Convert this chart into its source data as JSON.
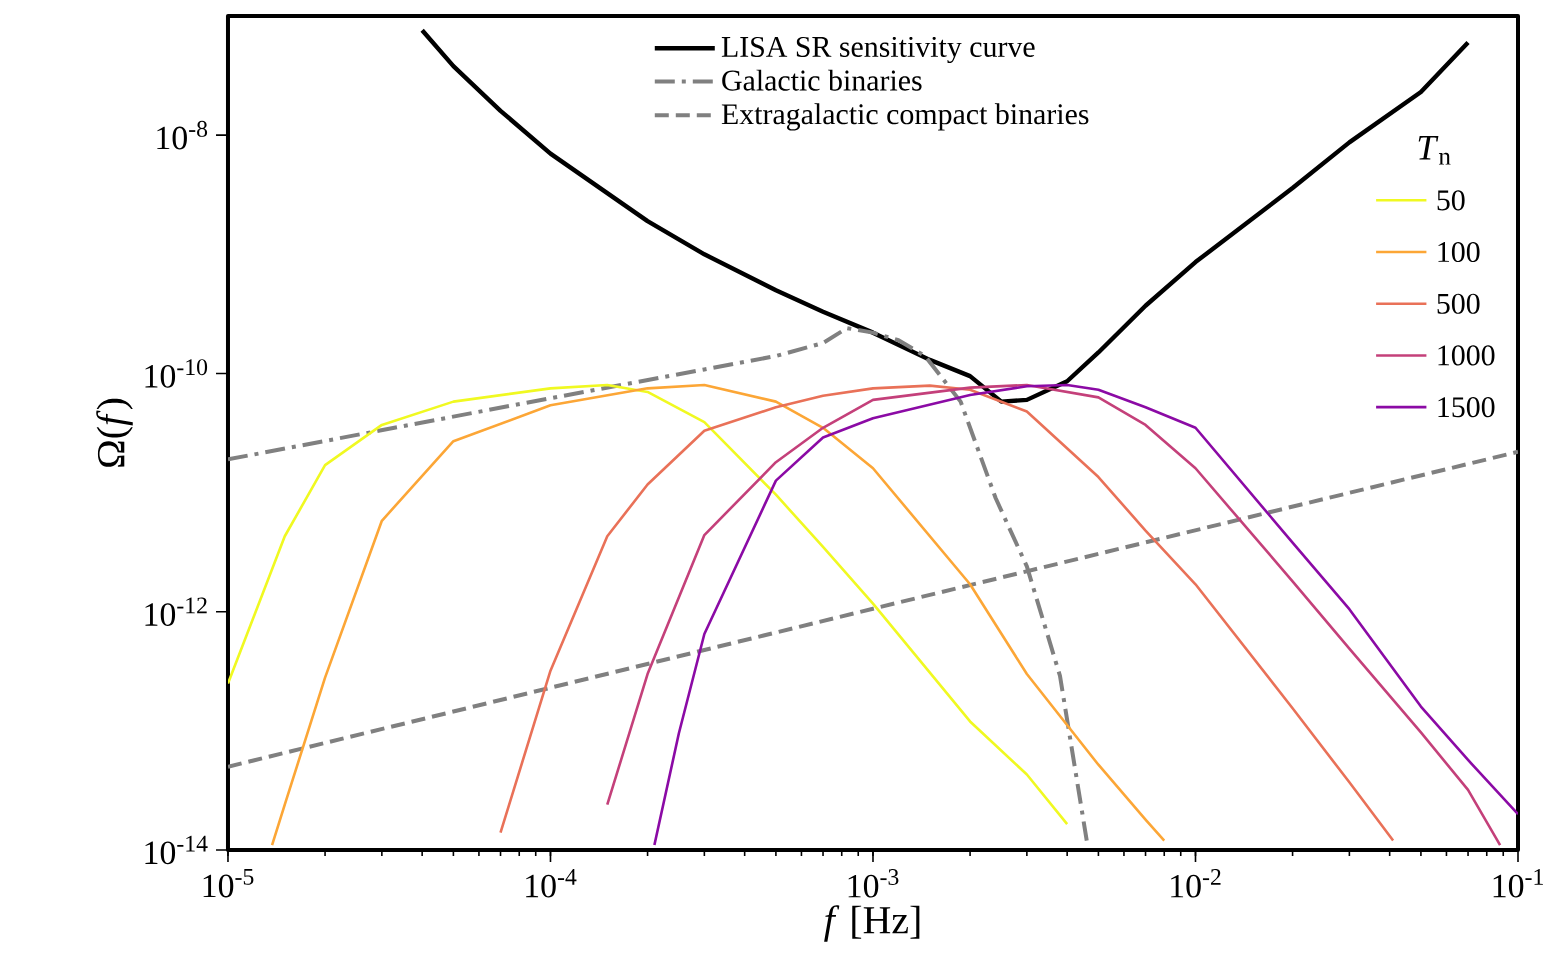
{
  "chart_data": {
    "type": "line",
    "xlabel": "*f* [Hz]",
    "ylabel": "Ω(*f*)",
    "log": "xy",
    "legend": "top",
    "legend_title": "*T*$_{n}$",
    "xlim": [
      1e-05,
      0.1
    ],
    "ylim": [
      1e-14,
      1e-07
    ],
    "xticks": [
      {
        "value": 1e-05,
        "label": "10$^{-5}$"
      },
      {
        "value": 0.0001,
        "label": "10$^{-4}$"
      },
      {
        "value": 0.001,
        "label": "10$^{-3}$"
      },
      {
        "value": 0.01,
        "label": "10$^{-2}$"
      },
      {
        "value": 0.1,
        "label": "10$^{-1}$"
      }
    ],
    "yticks": [
      {
        "value": 1e-14,
        "label": "10$^{-14}$"
      },
      {
        "value": 1e-12,
        "label": "10$^{-12}$"
      },
      {
        "value": 1e-10,
        "label": "10$^{-10}$"
      },
      {
        "value": 1e-08,
        "label": "10$^{-8}$"
      }
    ],
    "series": [
      {
        "name": "LISA SR sensitivity curve",
        "color": "#000000",
        "line_style": "solid",
        "x": [
          4e-05,
          5e-05,
          7e-05,
          0.0001,
          0.0002,
          0.0003,
          0.0005,
          0.0007,
          0.001,
          0.0015,
          0.002,
          0.0025,
          0.003,
          0.004,
          0.005,
          0.007,
          0.01,
          0.02,
          0.03,
          0.05,
          0.07
        ],
        "values": [
          7.6e-08,
          3.8e-08,
          1.6e-08,
          7e-09,
          1.9e-09,
          1e-09,
          5e-10,
          3.3e-10,
          2.2e-10,
          1.3e-10,
          9.5e-11,
          5.8e-11,
          6e-11,
          8.6e-11,
          1.5e-10,
          3.7e-10,
          8.6e-10,
          3.6e-09,
          8.7e-09,
          2.3e-08,
          6e-08
        ]
      },
      {
        "name": "Galactic binaries",
        "color": "#808080",
        "line_style": "dashdot",
        "x": [
          1e-05,
          0.0001,
          0.0003,
          0.0005,
          0.0007,
          0.00083,
          0.001,
          0.0012,
          0.00145,
          0.00187,
          0.0024,
          0.003,
          0.0038,
          0.0046
        ],
        "values": [
          1.9e-11,
          6.2e-11,
          1.08e-10,
          1.4e-10,
          1.8e-10,
          2.4e-10,
          2.2e-10,
          1.9e-10,
          1.4e-10,
          5.8e-11,
          9e-12,
          2.4e-12,
          2.9e-13,
          1.2e-14
        ]
      },
      {
        "name": "Extragalactic compact binaries",
        "color": "#808080",
        "line_style": "dashed",
        "x": [
          1e-05,
          0.001,
          0.1
        ],
        "values": [
          5e-14,
          1.06e-12,
          2.2e-11
        ]
      },
      {
        "name": "50",
        "color": "#f0f921",
        "x": [
          1e-05,
          1.5e-05,
          2e-05,
          3e-05,
          5e-05,
          0.0001,
          0.00015,
          0.0002,
          0.0003,
          0.0005,
          0.0007,
          0.001,
          0.002,
          0.003,
          0.004
        ],
        "values": [
          2.5e-13,
          4.3e-12,
          1.7e-11,
          3.7e-11,
          5.8e-11,
          7.5e-11,
          8e-11,
          7e-11,
          3.9e-11,
          9.6e-12,
          3.5e-12,
          1.17e-12,
          1.2e-13,
          4.3e-14,
          1.65e-14
        ]
      },
      {
        "name": "100",
        "color": "#fca636",
        "x": [
          1.37e-05,
          1.5e-05,
          2e-05,
          3e-05,
          5e-05,
          0.0001,
          0.0002,
          0.0003,
          0.0005,
          0.0007,
          0.001,
          0.002,
          0.003,
          0.005,
          0.007,
          0.008
        ],
        "values": [
          1.1e-14,
          2.4e-14,
          2.8e-13,
          5.8e-12,
          2.7e-11,
          5.4e-11,
          7.5e-11,
          8e-11,
          5.8e-11,
          3.5e-11,
          1.6e-11,
          1.7e-12,
          3e-13,
          5.2e-14,
          1.8e-14,
          1.2e-14
        ]
      },
      {
        "name": "500",
        "color": "#e97158",
        "x": [
          7e-05,
          0.0001,
          0.00015,
          0.0002,
          0.0003,
          0.0005,
          0.0007,
          0.001,
          0.0015,
          0.002,
          0.003,
          0.005,
          0.007,
          0.01,
          0.02,
          0.03,
          0.041
        ],
        "values": [
          1.4e-14,
          3.2e-13,
          4.3e-12,
          1.17e-11,
          3.3e-11,
          5.2e-11,
          6.5e-11,
          7.5e-11,
          7.9e-11,
          7.3e-11,
          4.8e-11,
          1.35e-11,
          4.8e-12,
          1.7e-12,
          1.55e-13,
          3.7e-14,
          1.2e-14
        ]
      },
      {
        "name": "1000",
        "color": "#c4407a",
        "x": [
          0.00015,
          0.0002,
          0.0003,
          0.0005,
          0.0007,
          0.001,
          0.002,
          0.003,
          0.005,
          0.007,
          0.01,
          0.02,
          0.03,
          0.05,
          0.07,
          0.088
        ],
        "values": [
          2.4e-14,
          3e-13,
          4.4e-12,
          1.8e-11,
          3.5e-11,
          6e-11,
          7.6e-11,
          8e-11,
          6.3e-11,
          3.7e-11,
          1.6e-11,
          1.8e-12,
          4.9e-13,
          9.7e-14,
          3.2e-14,
          1.1e-14
        ]
      },
      {
        "name": "1500",
        "color": "#8b0aa5",
        "x": [
          0.00021,
          0.00025,
          0.0003,
          0.0005,
          0.0007,
          0.001,
          0.002,
          0.003,
          0.004,
          0.005,
          0.007,
          0.01,
          0.02,
          0.03,
          0.05,
          0.07,
          0.1
        ],
        "values": [
          1.1e-14,
          9.5e-14,
          6.5e-13,
          1.26e-11,
          2.9e-11,
          4.2e-11,
          6.6e-11,
          7.8e-11,
          8e-11,
          7.3e-11,
          5.2e-11,
          3.5e-11,
          3.8e-12,
          1.05e-12,
          1.6e-13,
          5.7e-14,
          2e-14
        ]
      }
    ]
  }
}
